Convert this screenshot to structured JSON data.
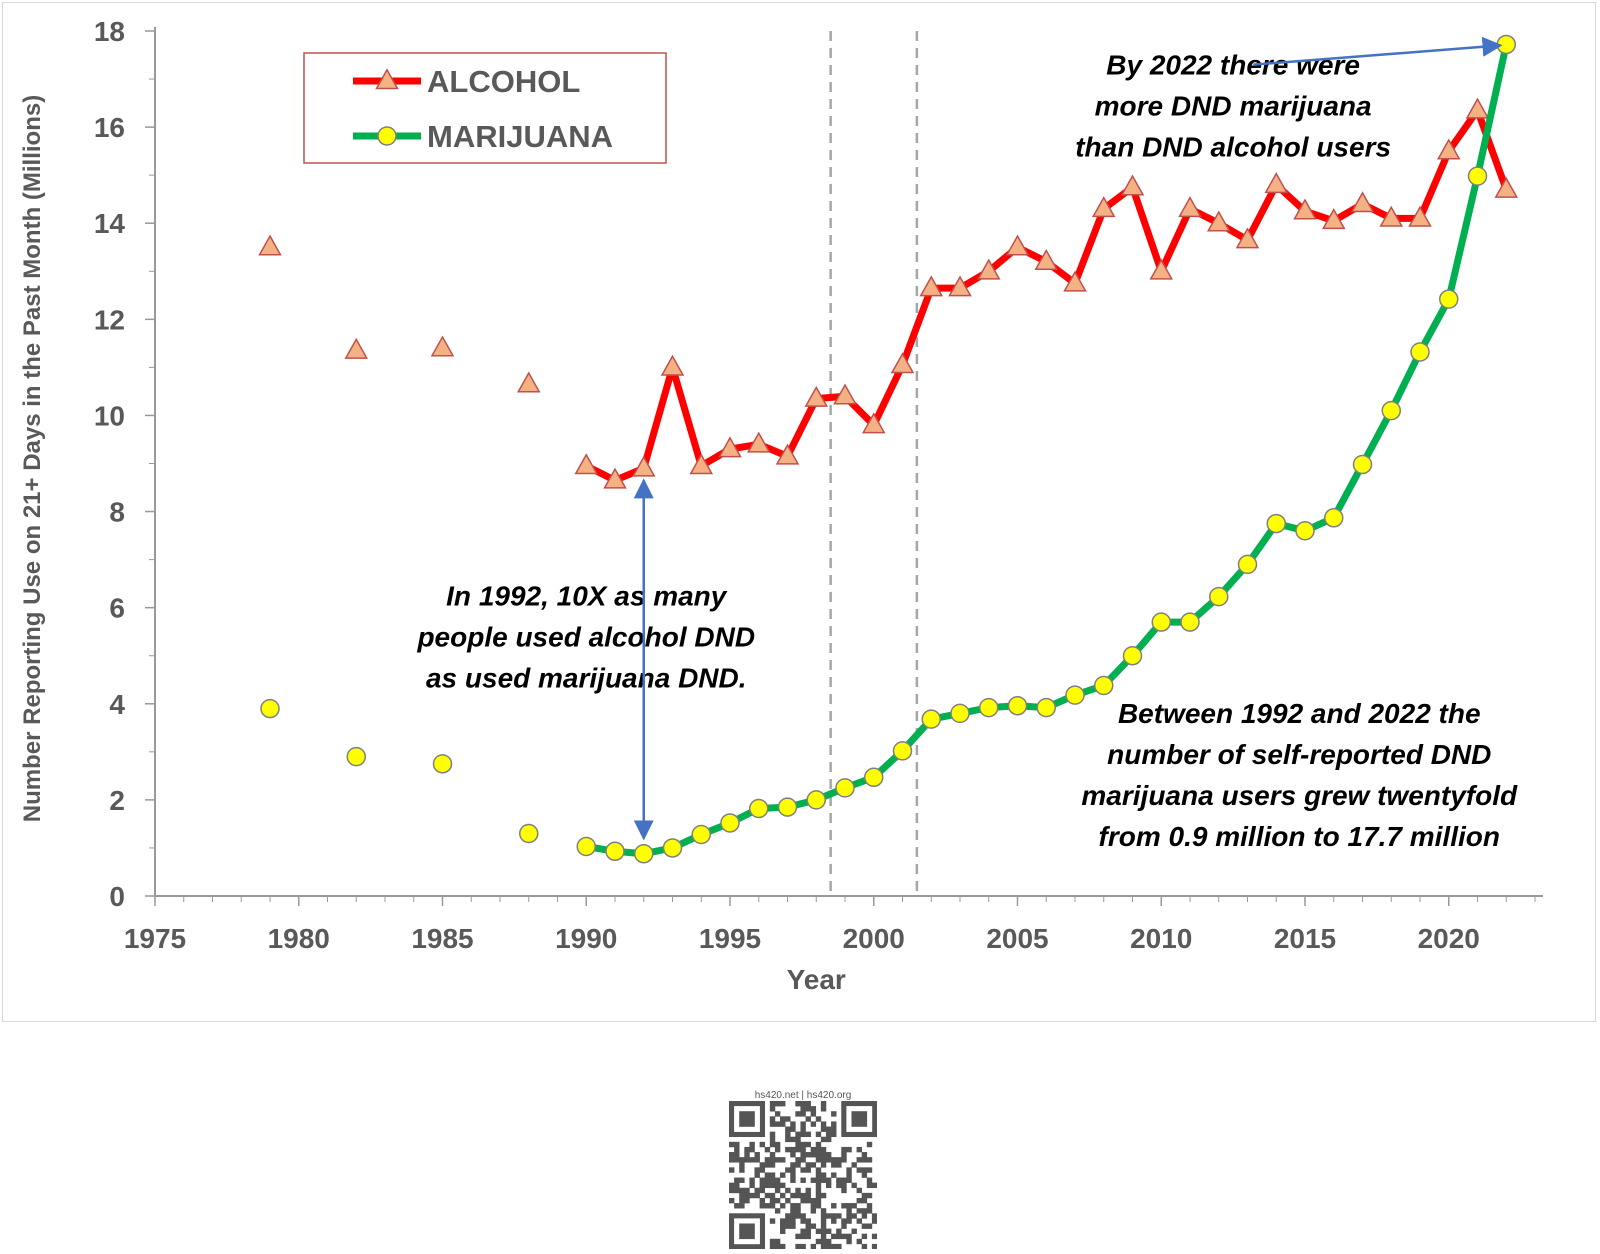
{
  "chart_data": {
    "type": "line",
    "xlabel": "Year",
    "ylabel": "Number Reporting Use on 21+ Days in the Past Month (Millions)",
    "xlim": [
      1975,
      2023
    ],
    "ylim": [
      0,
      18
    ],
    "xticks": [
      1975,
      1980,
      1985,
      1990,
      1995,
      2000,
      2005,
      2010,
      2015,
      2020
    ],
    "yticks": [
      0,
      2,
      4,
      6,
      8,
      10,
      12,
      14,
      16,
      18
    ],
    "grid": false,
    "legend_position": "top-left",
    "vlines": [
      1998.5,
      2001.5
    ],
    "series": [
      {
        "name": "ALCOHOL",
        "color": "#ff0000",
        "marker": "triangle",
        "marker_fill": "#f4b183",
        "marker_stroke": "#c0504d",
        "isolated": [
          [
            1979,
            13.5
          ],
          [
            1982,
            11.35
          ],
          [
            1985,
            11.4
          ],
          [
            1988,
            10.65
          ]
        ],
        "line": [
          [
            1990,
            8.95
          ],
          [
            1991,
            8.65
          ],
          [
            1992,
            8.9
          ],
          [
            1993,
            11.0
          ],
          [
            1994,
            8.95
          ],
          [
            1995,
            9.3
          ],
          [
            1996,
            9.4
          ],
          [
            1997,
            9.15
          ],
          [
            1998,
            10.35
          ],
          [
            1999,
            10.4
          ],
          [
            2000,
            9.8
          ],
          [
            2001,
            11.05
          ],
          [
            2002,
            12.65
          ],
          [
            2003,
            12.65
          ],
          [
            2004,
            13.0
          ],
          [
            2005,
            13.5
          ],
          [
            2006,
            13.2
          ],
          [
            2007,
            12.75
          ],
          [
            2008,
            14.3
          ],
          [
            2009,
            14.75
          ],
          [
            2010,
            13.0
          ],
          [
            2011,
            14.3
          ],
          [
            2012,
            14.0
          ],
          [
            2013,
            13.65
          ],
          [
            2014,
            14.8
          ],
          [
            2015,
            14.25
          ],
          [
            2016,
            14.05
          ],
          [
            2017,
            14.4
          ],
          [
            2018,
            14.1
          ],
          [
            2019,
            14.1
          ],
          [
            2020,
            15.5
          ],
          [
            2021,
            16.35
          ],
          [
            2022,
            14.7
          ]
        ]
      },
      {
        "name": "MARIJUANA",
        "color": "#00b050",
        "marker": "circle",
        "marker_fill": "#ffff00",
        "marker_stroke": "#7f7f7f",
        "isolated": [
          [
            1979,
            3.9
          ],
          [
            1982,
            2.9
          ],
          [
            1985,
            2.75
          ],
          [
            1988,
            1.3
          ]
        ],
        "line": [
          [
            1990,
            1.03
          ],
          [
            1991,
            0.93
          ],
          [
            1992,
            0.88
          ],
          [
            1993,
            1.0
          ],
          [
            1994,
            1.28
          ],
          [
            1995,
            1.52
          ],
          [
            1996,
            1.82
          ],
          [
            1997,
            1.85
          ],
          [
            1998,
            2.0
          ],
          [
            1999,
            2.25
          ],
          [
            2000,
            2.47
          ],
          [
            2001,
            3.02
          ],
          [
            2002,
            3.68
          ],
          [
            2003,
            3.8
          ],
          [
            2004,
            3.92
          ],
          [
            2005,
            3.96
          ],
          [
            2006,
            3.92
          ],
          [
            2007,
            4.18
          ],
          [
            2008,
            4.38
          ],
          [
            2009,
            5.0
          ],
          [
            2010,
            5.7
          ],
          [
            2011,
            5.7
          ],
          [
            2012,
            6.23
          ],
          [
            2013,
            6.9
          ],
          [
            2014,
            7.75
          ],
          [
            2015,
            7.6
          ],
          [
            2016,
            7.87
          ],
          [
            2017,
            8.98
          ],
          [
            2018,
            10.1
          ],
          [
            2019,
            11.32
          ],
          [
            2020,
            12.42
          ],
          [
            2021,
            14.98
          ],
          [
            2022,
            17.72
          ]
        ]
      }
    ],
    "annotations": [
      {
        "id": "ann-1992",
        "lines": [
          "In 1992, 10X as many",
          "people used alcohol DND",
          "as used marijuana DND."
        ],
        "x": 1990,
        "y": 6.05,
        "arrow": {
          "from": [
            1992,
            1.2
          ],
          "to": [
            1992,
            8.65
          ],
          "double_headed": true
        }
      },
      {
        "id": "ann-2022",
        "lines": [
          "By 2022  there were",
          "more DND marijuana",
          "than DND alcohol users"
        ],
        "x": 2012.5,
        "y": 17.1,
        "arrow": {
          "from": [
            2013.2,
            17.3
          ],
          "to": [
            2021.8,
            17.7
          ],
          "double_headed": false
        }
      },
      {
        "id": "ann-growth",
        "lines": [
          "Between 1992 and 2022 the",
          "number of self-reported DND",
          "marijuana users grew twentyfold",
          "from 0.9 million to 17.7 million"
        ],
        "x": 2014.8,
        "y": 3.6,
        "arrow": null
      }
    ]
  },
  "footer": {
    "qr_caption": "hs420.net | hs420.org"
  }
}
